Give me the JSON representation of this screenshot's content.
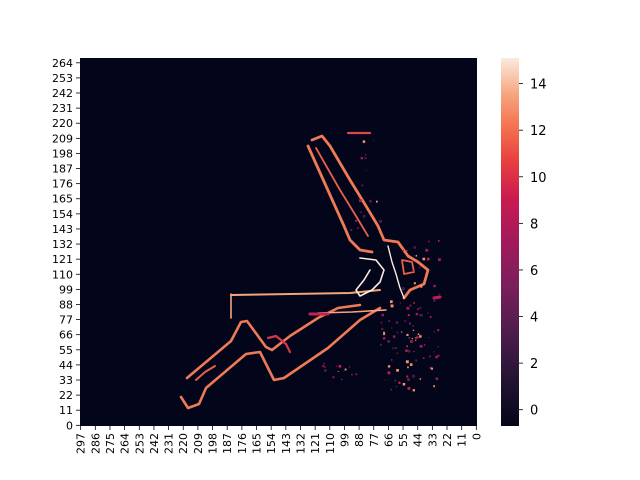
{
  "chart_data": {
    "type": "heatmap",
    "title": "",
    "xlabel": "",
    "ylabel": "",
    "x_tick_labels": [
      "297",
      "286",
      "275",
      "264",
      "253",
      "242",
      "231",
      "220",
      "209",
      "198",
      "187",
      "176",
      "165",
      "154",
      "143",
      "132",
      "121",
      "110",
      "99",
      "88",
      "77",
      "66",
      "55",
      "44",
      "33",
      "22",
      "11",
      "0"
    ],
    "y_tick_labels": [
      "264",
      "253",
      "242",
      "231",
      "220",
      "209",
      "198",
      "187",
      "176",
      "165",
      "154",
      "143",
      "132",
      "121",
      "110",
      "99",
      "88",
      "77",
      "66",
      "55",
      "44",
      "33",
      "22",
      "11",
      "0"
    ],
    "x_range": [
      297,
      0
    ],
    "y_range": [
      0,
      268
    ],
    "colorbar": {
      "ticks": [
        "0",
        "2",
        "4",
        "6",
        "8",
        "10",
        "12",
        "14"
      ],
      "min": -0.7,
      "max": 15.1,
      "colormap": "rocket"
    },
    "colors": {
      "background": "#03051a",
      "low": "#4c1d4b",
      "mid": "#cb1b4f",
      "high": "#f6916a",
      "peak": "#faebdd"
    },
    "features": [
      {
        "name": "diagonal-runway-lower-left",
        "value": 12
      },
      {
        "name": "upper-right-runway",
        "value": 12
      },
      {
        "name": "horizontal-taxiway",
        "value": 11
      },
      {
        "name": "scattered-speckles",
        "value": 4
      }
    ]
  }
}
